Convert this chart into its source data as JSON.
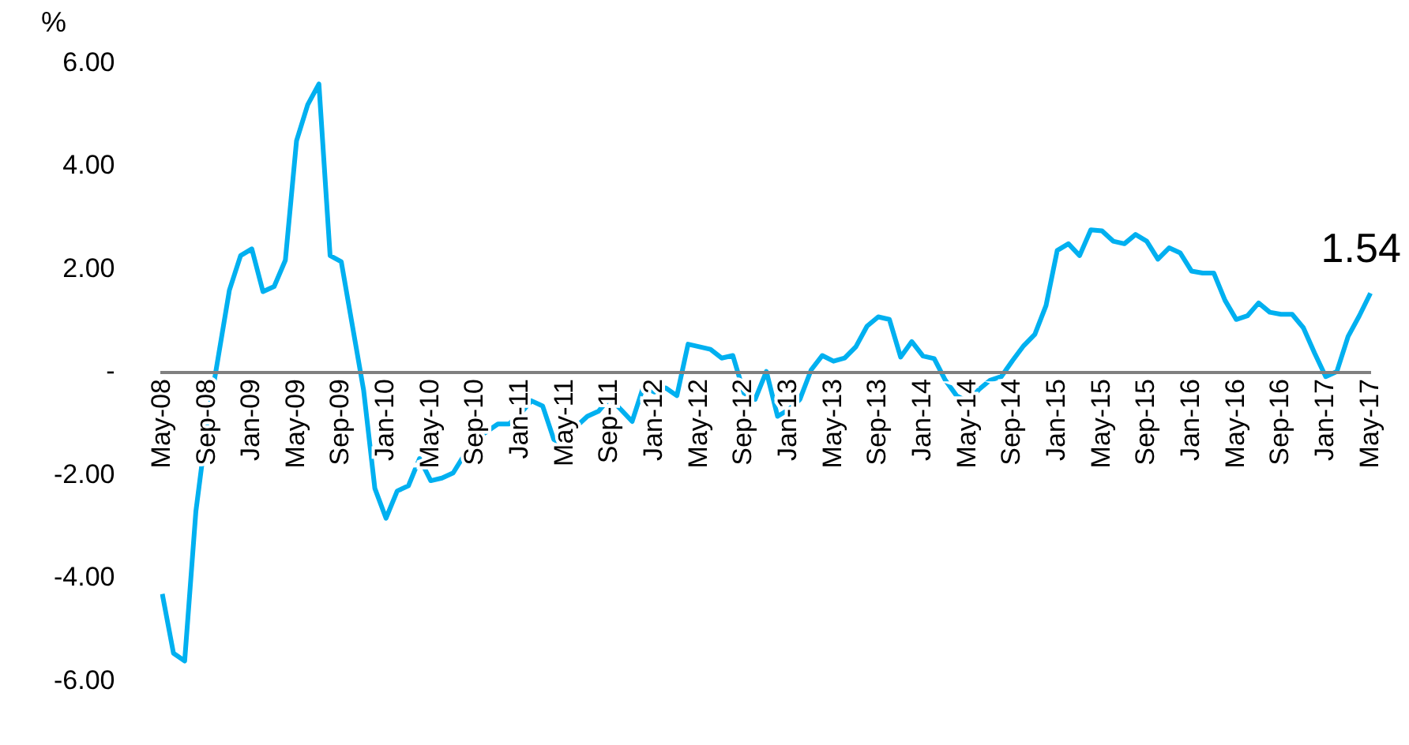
{
  "chart_data": {
    "type": "line",
    "ylabel": "%",
    "categories": [
      "May-08",
      null,
      null,
      null,
      "Sep-08",
      null,
      null,
      null,
      "Jan-09",
      null,
      null,
      null,
      "May-09",
      null,
      null,
      null,
      "Sep-09",
      null,
      null,
      null,
      "Jan-10",
      null,
      null,
      null,
      "May-10",
      null,
      null,
      null,
      "Sep-10",
      null,
      null,
      null,
      "Jan-11",
      null,
      null,
      null,
      "May-11",
      null,
      null,
      null,
      "Sep-11",
      null,
      null,
      null,
      "Jan-12",
      null,
      null,
      null,
      "May-12",
      null,
      null,
      null,
      "Sep-12",
      null,
      null,
      null,
      "Jan-13",
      null,
      null,
      null,
      "May-13",
      null,
      null,
      null,
      "Sep-13",
      null,
      null,
      null,
      "Jan-14",
      null,
      null,
      null,
      "May-14",
      null,
      null,
      null,
      "Sep-14",
      null,
      null,
      null,
      "Jan-15",
      null,
      null,
      null,
      "May-15",
      null,
      null,
      null,
      "Sep-15",
      null,
      null,
      null,
      "Jan-16",
      null,
      null,
      null,
      "May-16",
      null,
      null,
      null,
      "Sep-16",
      null,
      null,
      null,
      "Jan-17",
      null,
      null,
      null,
      "May-17"
    ],
    "series": [
      {
        "color": "#00b0f0",
        "values": [
          -4.3,
          -5.45,
          -5.6,
          -2.7,
          -1.0,
          0.3,
          1.6,
          2.27,
          2.4,
          1.57,
          1.67,
          2.18,
          4.5,
          5.2,
          5.6,
          2.27,
          2.15,
          0.9,
          -0.35,
          -2.25,
          -2.83,
          -2.3,
          -2.2,
          -1.67,
          -2.1,
          -2.05,
          -1.95,
          -1.6,
          -1.28,
          -1.15,
          -1.0,
          -1.0,
          -0.8,
          -0.55,
          -0.65,
          -1.3,
          -1.42,
          -1.05,
          -0.85,
          -0.75,
          -0.5,
          -0.72,
          -0.95,
          -0.28,
          -0.38,
          -0.3,
          -0.45,
          0.55,
          0.5,
          0.45,
          0.28,
          0.33,
          -0.4,
          -0.52,
          0.02,
          -0.85,
          -0.72,
          -0.52,
          0.05,
          0.33,
          0.22,
          0.28,
          0.5,
          0.9,
          1.08,
          1.03,
          0.3,
          0.6,
          0.32,
          0.27,
          -0.15,
          -0.45,
          -0.57,
          -0.33,
          -0.15,
          -0.08,
          0.23,
          0.52,
          0.74,
          1.3,
          2.37,
          2.5,
          2.27,
          2.77,
          2.75,
          2.55,
          2.5,
          2.68,
          2.55,
          2.2,
          2.42,
          2.32,
          1.97,
          1.93,
          1.93,
          1.4,
          1.03,
          1.1,
          1.35,
          1.17,
          1.13,
          1.13,
          0.87,
          0.38,
          -0.08,
          0.02,
          0.7,
          1.1,
          1.54
        ],
        "value_labels": [
          null,
          null,
          null,
          null,
          null,
          null,
          null,
          null,
          null,
          null,
          null,
          null,
          null,
          null,
          null,
          null,
          null,
          null,
          null,
          null,
          null,
          null,
          null,
          null,
          null,
          null,
          null,
          null,
          null,
          null,
          null,
          null,
          null,
          null,
          null,
          null,
          null,
          null,
          null,
          null,
          null,
          null,
          null,
          null,
          null,
          null,
          null,
          null,
          null,
          null,
          null,
          null,
          null,
          null,
          null,
          null,
          null,
          null,
          null,
          null,
          null,
          null,
          null,
          null,
          null,
          null,
          null,
          null,
          null,
          null,
          null,
          null,
          null,
          null,
          null,
          null,
          null,
          null,
          null,
          null,
          null,
          null,
          null,
          null,
          null,
          null,
          null,
          null,
          null,
          null,
          null,
          null,
          null,
          null,
          null,
          null,
          null,
          null,
          null,
          null,
          null,
          null,
          null,
          null,
          null,
          null,
          null,
          null,
          "1.54"
        ]
      }
    ],
    "ylim": [
      -6,
      6
    ],
    "yticks": [
      {
        "value": -6,
        "label": "-6.00"
      },
      {
        "value": -4,
        "label": "-4.00"
      },
      {
        "value": -2,
        "label": "-2.00"
      },
      {
        "value": 0,
        "label": "-"
      },
      {
        "value": 2,
        "label": "2.00"
      },
      {
        "value": 4,
        "label": "4.00"
      },
      {
        "value": 6,
        "label": "6.00"
      }
    ],
    "grid": false,
    "legend": false,
    "marker": "none",
    "line_style": "solid"
  }
}
